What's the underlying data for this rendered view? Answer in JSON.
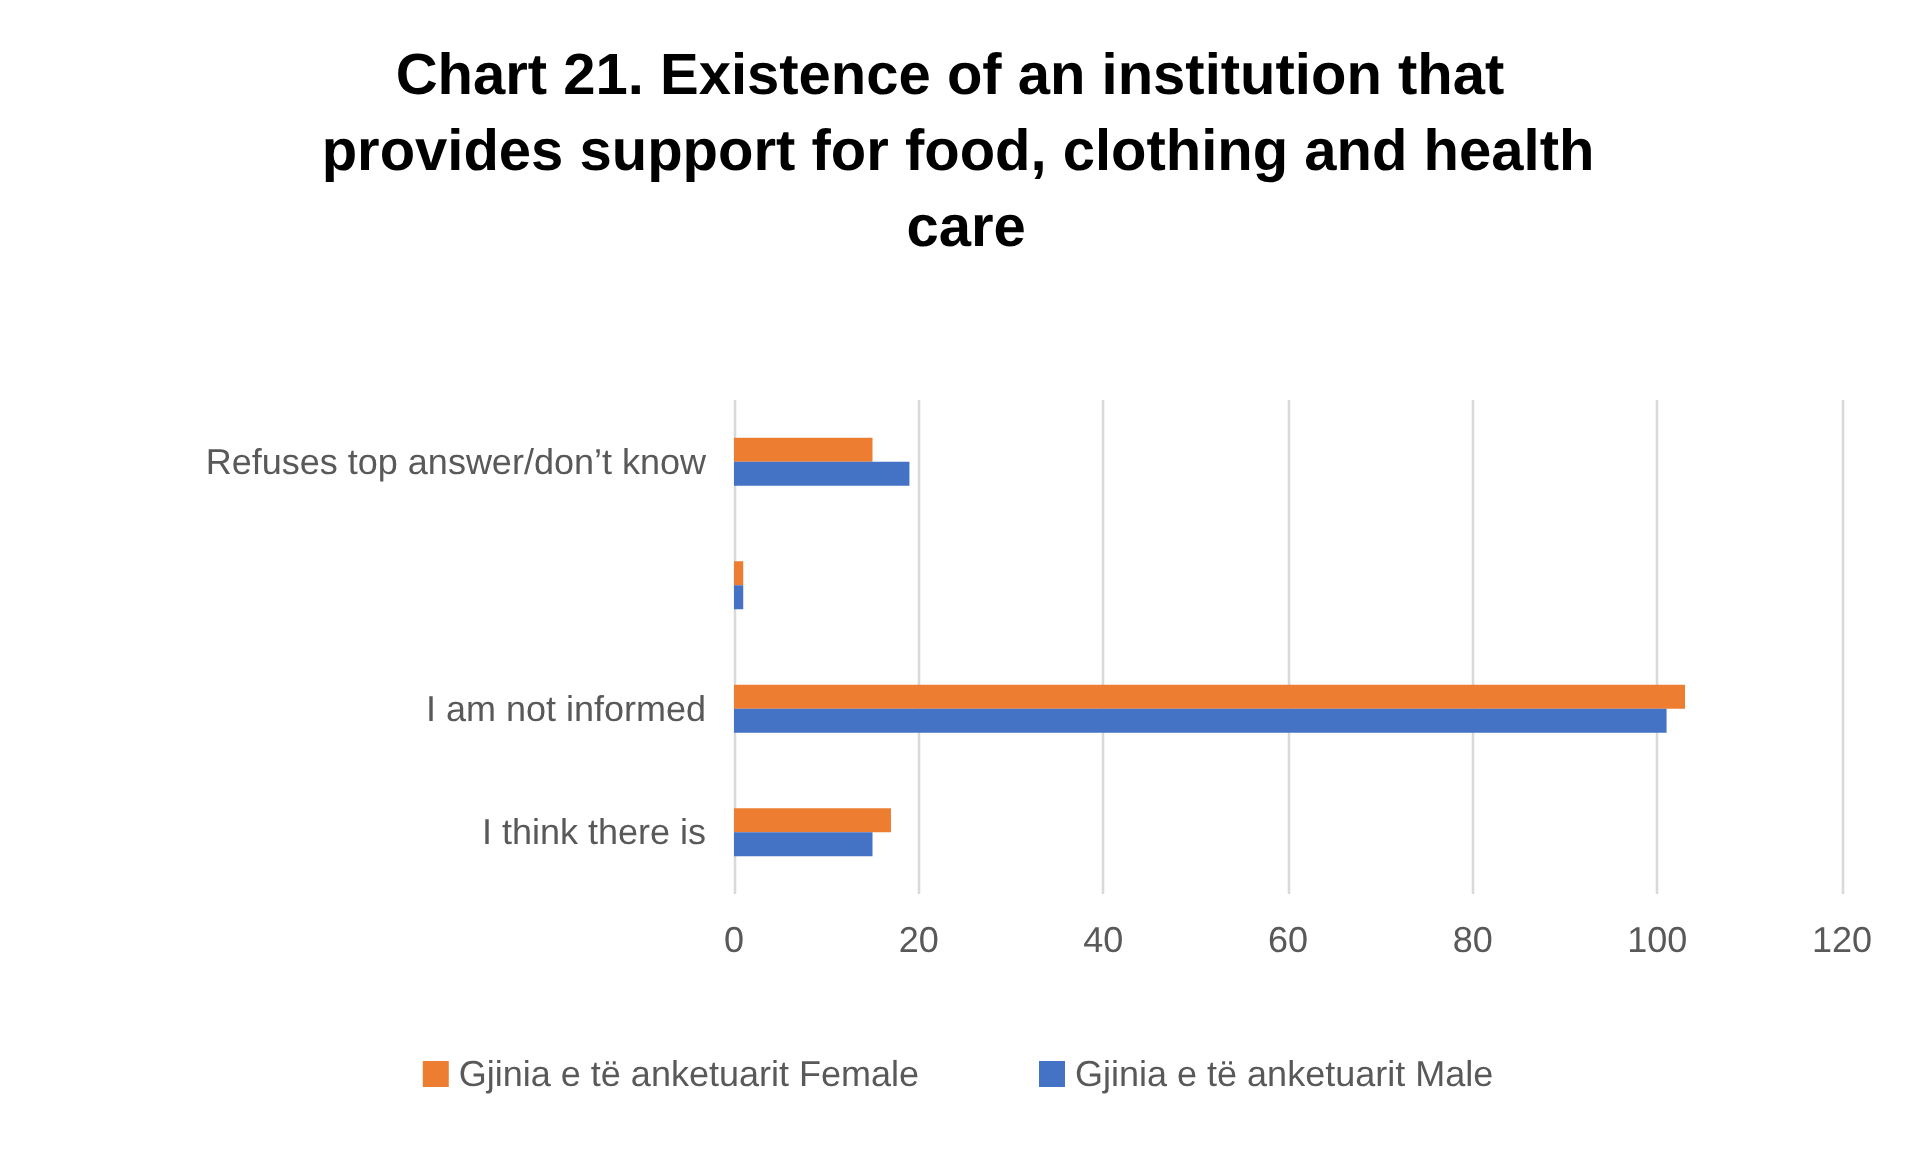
{
  "chart_data": {
    "type": "bar",
    "orientation": "horizontal",
    "title": "Chart 21. Existence of an institution that provides support for food, clothing and health care",
    "categories": [
      "Refuses top answer/don’t know",
      null,
      "I am not informed",
      "I think there is"
    ],
    "series": [
      {
        "name": "Gjinia e të anketuarit Female",
        "color": "#ed7d31",
        "values": [
          15,
          1,
          103,
          17
        ]
      },
      {
        "name": "Gjinia e të anketuarit Male",
        "color": "#4472c4",
        "values": [
          19,
          1,
          101,
          15
        ]
      }
    ],
    "xlim": [
      0,
      120
    ],
    "xticks": [
      0,
      20,
      40,
      60,
      80,
      100,
      120
    ],
    "grid": "x",
    "legend": "bottom"
  }
}
